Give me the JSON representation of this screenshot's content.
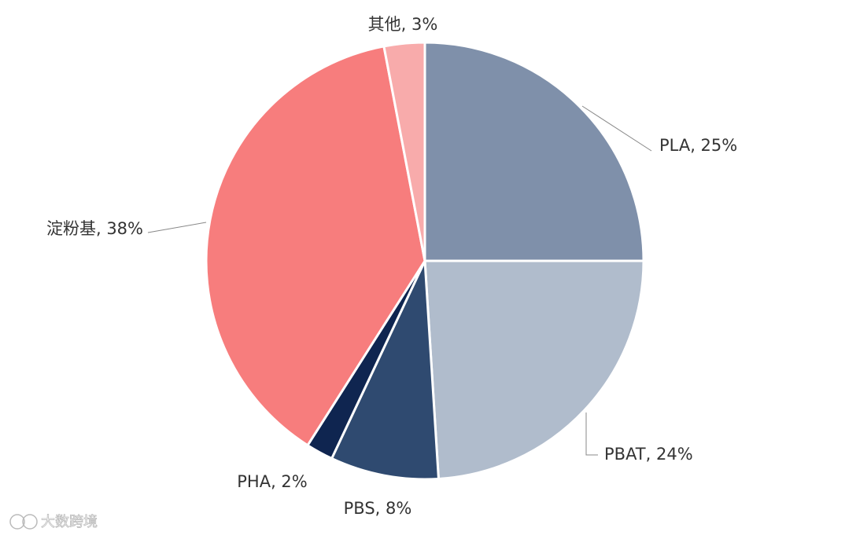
{
  "chart_data": {
    "type": "pie",
    "value_labels": [
      "PLA, 25%",
      "PBAT, 24%",
      "PBS, 8%",
      "PHA, 2%",
      "淀粉基, 38%",
      "其他, 3%"
    ],
    "values": [
      25,
      24,
      8,
      2,
      38,
      3
    ],
    "colors": [
      "#7f90aa",
      "#b0bccc",
      "#2f4a70",
      "#0f2550",
      "#f77d7d",
      "#f8abab"
    ]
  },
  "watermark": "大数跨境"
}
